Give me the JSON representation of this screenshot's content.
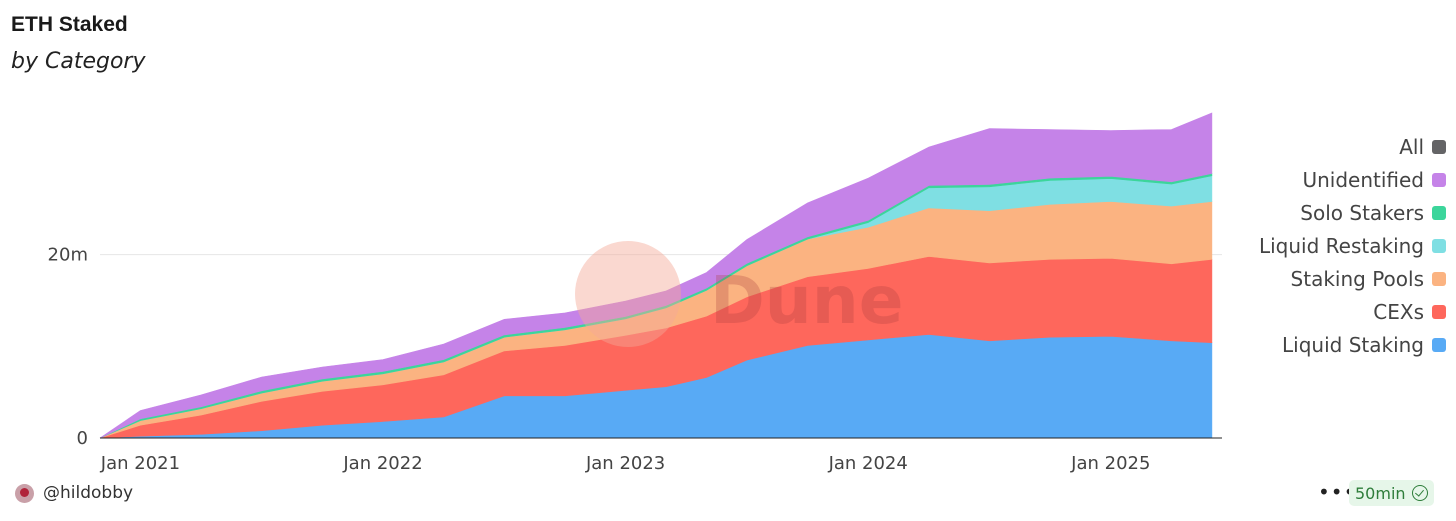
{
  "chart_data": {
    "type": "area",
    "title": "ETH Staked",
    "subtitle": "by Category",
    "stacked": true,
    "x": [
      "2020-11",
      "2021-01",
      "2021-04",
      "2021-07",
      "2021-10",
      "2022-01",
      "2022-04",
      "2022-07",
      "2022-10",
      "2023-01",
      "2023-03",
      "2023-05",
      "2023-07",
      "2023-10",
      "2024-01",
      "2024-04",
      "2024-07",
      "2024-10",
      "2025-01",
      "2025-04",
      "2025-06"
    ],
    "x_ticks": [
      "Jan 2021",
      "Jan 2022",
      "Jan 2023",
      "Jan 2024",
      "Jan 2025"
    ],
    "y_ticks": [
      "0",
      "20m"
    ],
    "ylim": [
      0,
      36
    ],
    "grid": true,
    "legend_position": "right",
    "watermark": "Dune",
    "series": [
      {
        "name": "Liquid Staking",
        "color": "#58aaf5",
        "values": [
          0.0,
          0.2,
          0.4,
          0.8,
          1.4,
          1.8,
          2.3,
          4.6,
          4.6,
          5.2,
          5.6,
          6.6,
          8.5,
          10.1,
          10.7,
          11.3,
          10.6,
          11.0,
          11.1,
          10.6,
          10.4
        ]
      },
      {
        "name": "CEXs",
        "color": "#fe675c",
        "values": [
          0.0,
          1.2,
          2.1,
          3.2,
          3.7,
          4.0,
          4.6,
          4.9,
          5.5,
          6.0,
          6.4,
          6.7,
          6.9,
          7.5,
          7.8,
          8.5,
          8.5,
          8.5,
          8.5,
          8.4,
          9.1
        ]
      },
      {
        "name": "Staking Pools",
        "color": "#fbb381",
        "values": [
          0.0,
          0.5,
          0.7,
          0.9,
          1.1,
          1.2,
          1.4,
          1.5,
          1.7,
          1.8,
          2.2,
          2.8,
          3.4,
          4.1,
          4.5,
          5.3,
          5.7,
          6.0,
          6.2,
          6.3,
          6.3
        ]
      },
      {
        "name": "Liquid Restaking",
        "color": "#7fdfe3",
        "values": [
          0.0,
          0.0,
          0.0,
          0.0,
          0.0,
          0.0,
          0.0,
          0.0,
          0.0,
          0.0,
          0.0,
          0.0,
          0.0,
          0.0,
          0.5,
          2.2,
          2.6,
          2.6,
          2.5,
          2.4,
          2.8
        ]
      },
      {
        "name": "Solo Stakers",
        "color": "#3cd59b",
        "values": [
          0.0,
          0.2,
          0.2,
          0.25,
          0.25,
          0.25,
          0.25,
          0.25,
          0.25,
          0.25,
          0.25,
          0.25,
          0.25,
          0.25,
          0.25,
          0.25,
          0.25,
          0.25,
          0.25,
          0.25,
          0.25
        ]
      },
      {
        "name": "Unidentified",
        "color": "#c583e8",
        "values": [
          0.0,
          0.9,
          1.3,
          1.5,
          1.3,
          1.3,
          1.7,
          1.7,
          1.6,
          1.7,
          1.6,
          1.7,
          2.6,
          3.7,
          4.6,
          4.2,
          6.1,
          5.3,
          5.0,
          5.7,
          6.6
        ]
      }
    ],
    "legend": [
      {
        "name": "All",
        "color": "#646466"
      },
      {
        "name": "Unidentified",
        "color": "#c583e8"
      },
      {
        "name": "Solo Stakers",
        "color": "#3cd59b"
      },
      {
        "name": "Liquid Restaking",
        "color": "#7fdfe3"
      },
      {
        "name": "Staking Pools",
        "color": "#fbb381"
      },
      {
        "name": "CEXs",
        "color": "#fe675c"
      },
      {
        "name": "Liquid Staking",
        "color": "#58aaf5"
      }
    ]
  },
  "footer": {
    "username": "@hildobby",
    "more": "•••",
    "refresh": "50min"
  }
}
